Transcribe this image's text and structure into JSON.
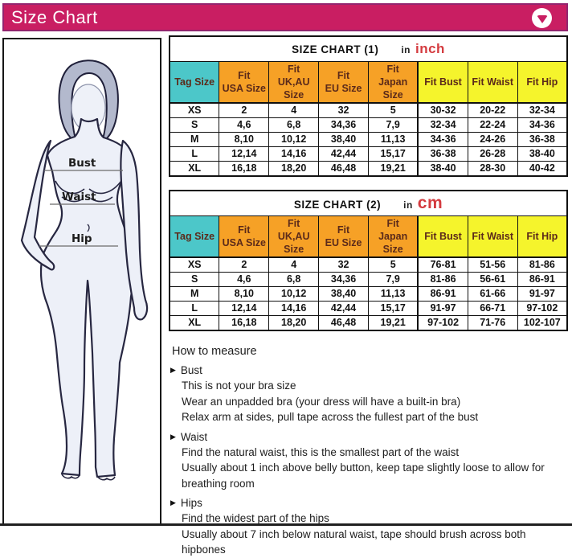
{
  "header": {
    "title": "Size Chart"
  },
  "figure": {
    "bust_label": "Bust",
    "waist_label": "Waist",
    "hip_label": "Hip"
  },
  "tables": [
    {
      "title": "SIZE CHART (1)",
      "unit_prefix": "in",
      "unit": "inch",
      "columns": [
        {
          "lines": [
            "Tag Size"
          ],
          "group": "tag"
        },
        {
          "lines": [
            "Fit",
            "USA Size"
          ],
          "group": "intl"
        },
        {
          "lines": [
            "Fit",
            "UK,AU",
            "Size"
          ],
          "group": "intl"
        },
        {
          "lines": [
            "Fit",
            "EU Size"
          ],
          "group": "intl"
        },
        {
          "lines": [
            "Fit",
            "Japan",
            "Size"
          ],
          "group": "intl"
        },
        {
          "lines": [
            "Fit Bust"
          ],
          "group": "fit"
        },
        {
          "lines": [
            "Fit Waist"
          ],
          "group": "fit"
        },
        {
          "lines": [
            "Fit Hip"
          ],
          "group": "fit"
        }
      ],
      "rows": [
        [
          "XS",
          "2",
          "4",
          "32",
          "5",
          "30-32",
          "20-22",
          "32-34"
        ],
        [
          "S",
          "4,6",
          "6,8",
          "34,36",
          "7,9",
          "32-34",
          "22-24",
          "34-36"
        ],
        [
          "M",
          "8,10",
          "10,12",
          "38,40",
          "11,13",
          "34-36",
          "24-26",
          "36-38"
        ],
        [
          "L",
          "12,14",
          "14,16",
          "42,44",
          "15,17",
          "36-38",
          "26-28",
          "38-40"
        ],
        [
          "XL",
          "16,18",
          "18,20",
          "46,48",
          "19,21",
          "38-40",
          "28-30",
          "40-42"
        ]
      ]
    },
    {
      "title": "SIZE CHART (2)",
      "unit_prefix": "in",
      "unit": "cm",
      "columns": [
        {
          "lines": [
            "Tag Size"
          ],
          "group": "tag"
        },
        {
          "lines": [
            "Fit",
            "USA Size"
          ],
          "group": "intl"
        },
        {
          "lines": [
            "Fit",
            "UK,AU",
            "Size"
          ],
          "group": "intl"
        },
        {
          "lines": [
            "Fit",
            "EU Size"
          ],
          "group": "intl"
        },
        {
          "lines": [
            "Fit",
            "Japan",
            "Size"
          ],
          "group": "intl"
        },
        {
          "lines": [
            "Fit Bust"
          ],
          "group": "fit"
        },
        {
          "lines": [
            "Fit Waist"
          ],
          "group": "fit"
        },
        {
          "lines": [
            "Fit Hip"
          ],
          "group": "fit"
        }
      ],
      "rows": [
        [
          "XS",
          "2",
          "4",
          "32",
          "5",
          "76-81",
          "51-56",
          "81-86"
        ],
        [
          "S",
          "4,6",
          "6,8",
          "34,36",
          "7,9",
          "81-86",
          "56-61",
          "86-91"
        ],
        [
          "M",
          "8,10",
          "10,12",
          "38,40",
          "11,13",
          "86-91",
          "61-66",
          "91-97"
        ],
        [
          "L",
          "12,14",
          "14,16",
          "42,44",
          "15,17",
          "91-97",
          "66-71",
          "97-102"
        ],
        [
          "XL",
          "16,18",
          "18,20",
          "46,48",
          "19,21",
          "97-102",
          "71-76",
          "102-107"
        ]
      ]
    }
  ],
  "how_to_measure": {
    "title": "How to measure",
    "sections": [
      {
        "heading": "Bust",
        "lines": [
          "This is not your bra size",
          "Wear an unpadded bra (your dress will have a built-in bra)",
          "Relax arm at sides, pull tape across the fullest part of the bust"
        ]
      },
      {
        "heading": "Waist",
        "lines": [
          "Find the natural waist, this is the smallest part of the waist",
          "Usually about 1 inch above belly button, keep tape slightly loose to allow for breathing room"
        ]
      },
      {
        "heading": "Hips",
        "lines": [
          "Find the widest part of the hips",
          "Usually about 7 inch below natural waist, tape should brush across both hipbones"
        ]
      }
    ]
  },
  "colors": {
    "header_bar": "#c91e62",
    "header_border": "#93256f",
    "tag_size_bg": "#4cc7c9",
    "intl_size_bg": "#f6a126",
    "fit_bg": "#f5f42c",
    "unit_text": "#d43b3f",
    "table_header_text": "#5b2a1a"
  }
}
